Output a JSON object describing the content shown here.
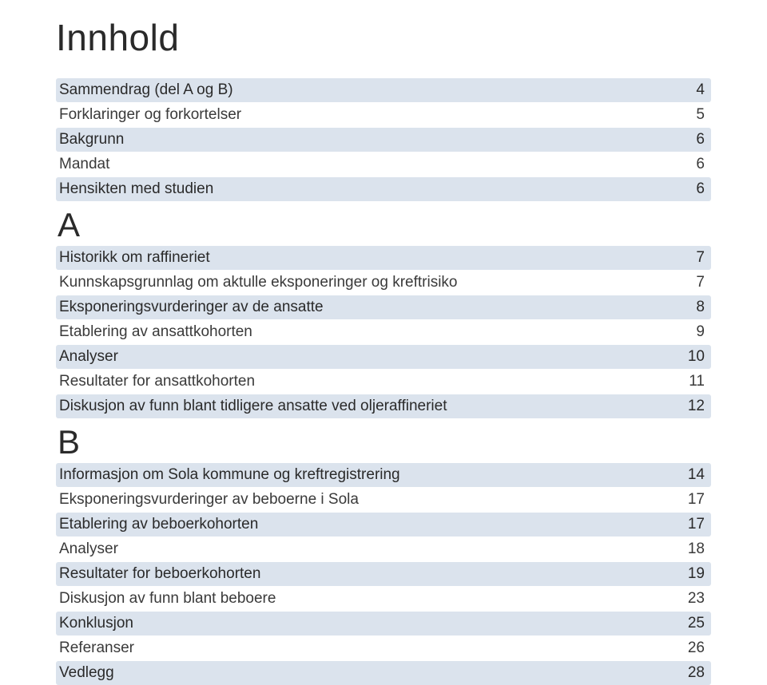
{
  "title": "Innhold",
  "styles": {
    "highlight_bg": "#dbe3ed",
    "page_bg": "#ffffff",
    "text_color": "#3a3a3a",
    "title_fontsize": 46,
    "row_fontsize": 19,
    "section_letter_fontsize": 42
  },
  "sections": {
    "intro": [
      {
        "label": "Sammendrag (del A og B)",
        "page": "4",
        "hl": true
      },
      {
        "label": "Forklaringer og forkortelser",
        "page": "5",
        "hl": false
      },
      {
        "label": "Bakgrunn",
        "page": "6",
        "hl": true
      },
      {
        "label": "Mandat",
        "page": "6",
        "hl": false
      },
      {
        "label": "Hensikten med studien",
        "page": "6",
        "hl": true
      }
    ],
    "A_letter": "A",
    "A": [
      {
        "label": "Historikk om raffineriet",
        "page": "7",
        "hl": true
      },
      {
        "label": "Kunnskapsgrunnlag om aktulle eksponeringer og kreftrisiko",
        "page": "7",
        "hl": false
      },
      {
        "label": "Eksponeringsvurderinger av de ansatte",
        "page": "8",
        "hl": true
      },
      {
        "label": "Etablering av ansattkohorten",
        "page": "9",
        "hl": false
      },
      {
        "label": "Analyser",
        "page": "10",
        "hl": true
      },
      {
        "label": "Resultater for ansattkohorten",
        "page": "11",
        "hl": false
      },
      {
        "label": "Diskusjon av funn blant tidligere ansatte ved oljeraffineriet",
        "page": "12",
        "hl": true
      }
    ],
    "B_letter": "B",
    "B": [
      {
        "label": "Informasjon om Sola kommune og kreftregistrering",
        "page": "14",
        "hl": true
      },
      {
        "label": "Eksponeringsvurderinger av beboerne i Sola",
        "page": "17",
        "hl": false
      },
      {
        "label": "Etablering av beboerkohorten",
        "page": "17",
        "hl": true
      },
      {
        "label": "Analyser",
        "page": "18",
        "hl": false
      },
      {
        "label": "Resultater for beboerkohorten",
        "page": "19",
        "hl": true
      },
      {
        "label": "Diskusjon av funn blant beboere",
        "page": "23",
        "hl": false
      },
      {
        "label": "Konklusjon",
        "page": "25",
        "hl": true
      },
      {
        "label": "Referanser",
        "page": "26",
        "hl": false
      },
      {
        "label": "Vedlegg",
        "page": "28",
        "hl": true
      }
    ]
  }
}
